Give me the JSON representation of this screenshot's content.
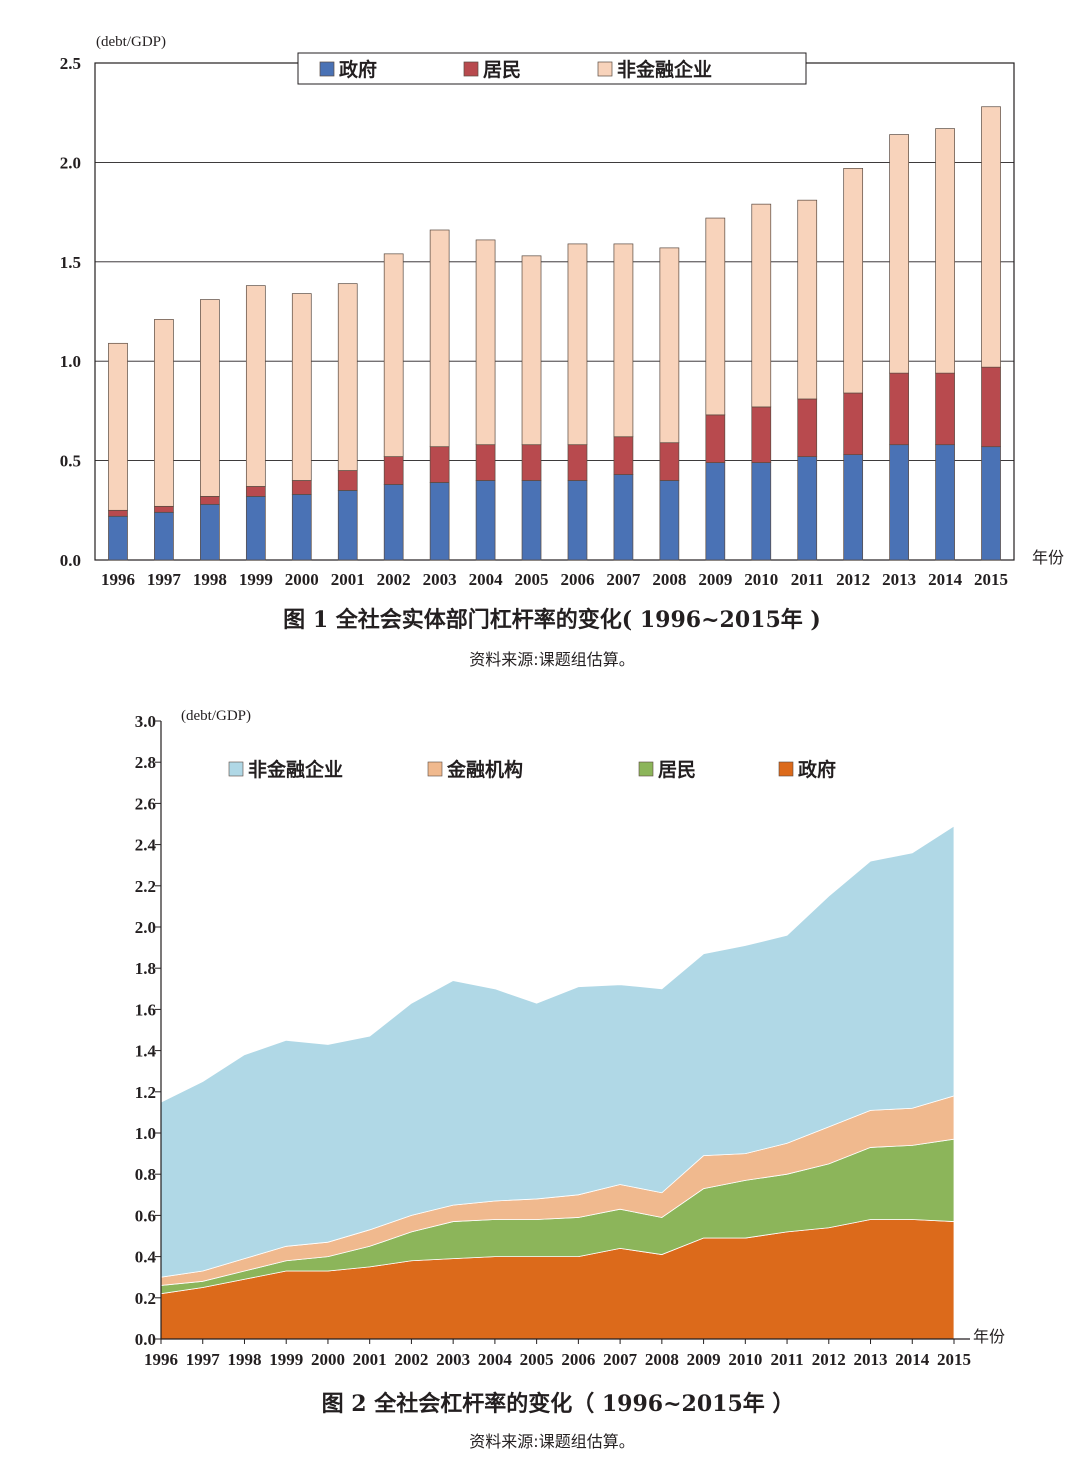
{
  "colors": {
    "fig1_gov": "#4a72b5",
    "fig1_hh": "#b84a4e",
    "fig1_corp": "#f8d3bb",
    "fig2_corp": "#b0d8e6",
    "fig2_fin": "#f0b98e",
    "fig2_hh": "#8cb55a",
    "fig2_gov": "#dc6a1b"
  },
  "chart_data": [
    {
      "type": "bar",
      "stacked": true,
      "unit_label": "(debt/GDP)",
      "x_axis_label": "年份",
      "caption": "图 1   全社会实体部门杠杆率的变化( 1996~2015年 )",
      "source": "资料来源:课题组估算。",
      "ylim": [
        0,
        2.5
      ],
      "y_ticks": [
        "0.0",
        "0.5",
        "1.0",
        "1.5",
        "2.0",
        "2.5"
      ],
      "legend_position": "top-center",
      "categories": [
        "1996",
        "1997",
        "1998",
        "1999",
        "2000",
        "2001",
        "2002",
        "2003",
        "2004",
        "2005",
        "2006",
        "2007",
        "2008",
        "2009",
        "2010",
        "2011",
        "2012",
        "2013",
        "2014",
        "2015"
      ],
      "series": [
        {
          "name": "政府",
          "color_key": "fig1_gov",
          "values": [
            0.22,
            0.24,
            0.28,
            0.32,
            0.33,
            0.35,
            0.38,
            0.39,
            0.4,
            0.4,
            0.4,
            0.43,
            0.4,
            0.49,
            0.49,
            0.52,
            0.53,
            0.58,
            0.58,
            0.57
          ]
        },
        {
          "name": "居民",
          "color_key": "fig1_hh",
          "values": [
            0.03,
            0.03,
            0.04,
            0.05,
            0.07,
            0.1,
            0.14,
            0.18,
            0.18,
            0.18,
            0.18,
            0.19,
            0.19,
            0.24,
            0.28,
            0.29,
            0.31,
            0.36,
            0.36,
            0.4
          ]
        },
        {
          "name": "非金融企业",
          "color_key": "fig1_corp",
          "values": [
            0.84,
            0.94,
            0.99,
            1.01,
            0.94,
            0.94,
            1.02,
            1.09,
            1.03,
            0.95,
            1.01,
            0.97,
            0.98,
            0.99,
            1.02,
            1.0,
            1.13,
            1.2,
            1.23,
            1.31
          ]
        }
      ]
    },
    {
      "type": "area",
      "stacked": true,
      "unit_label": "(debt/GDP)",
      "x_axis_label": "年份",
      "caption": "图 2   全社会杠杆率的变化（ 1996~2015年 ）",
      "source": "资料来源:课题组估算。",
      "ylim": [
        0,
        3.0
      ],
      "y_ticks": [
        "0.0",
        "0.2",
        "0.4",
        "0.6",
        "0.8",
        "1.0",
        "1.2",
        "1.4",
        "1.6",
        "1.8",
        "2.0",
        "2.2",
        "2.4",
        "2.6",
        "2.8",
        "3.0"
      ],
      "legend_position": "top",
      "x": [
        "1996",
        "1997",
        "1998",
        "1999",
        "2000",
        "2001",
        "2002",
        "2003",
        "2004",
        "2005",
        "2006",
        "2007",
        "2008",
        "2009",
        "2010",
        "2011",
        "2012",
        "2013",
        "2014",
        "2015"
      ],
      "series": [
        {
          "name": "政府",
          "color_key": "fig2_gov",
          "values": [
            0.22,
            0.25,
            0.29,
            0.33,
            0.33,
            0.35,
            0.38,
            0.39,
            0.4,
            0.4,
            0.4,
            0.44,
            0.41,
            0.49,
            0.49,
            0.52,
            0.54,
            0.58,
            0.58,
            0.57
          ]
        },
        {
          "name": "居民",
          "color_key": "fig2_hh",
          "values": [
            0.04,
            0.03,
            0.04,
            0.05,
            0.07,
            0.1,
            0.14,
            0.18,
            0.18,
            0.18,
            0.19,
            0.19,
            0.18,
            0.24,
            0.28,
            0.28,
            0.31,
            0.35,
            0.36,
            0.4
          ]
        },
        {
          "name": "金融机构",
          "color_key": "fig2_fin",
          "values": [
            0.04,
            0.05,
            0.06,
            0.07,
            0.07,
            0.08,
            0.08,
            0.08,
            0.09,
            0.1,
            0.11,
            0.12,
            0.12,
            0.16,
            0.13,
            0.15,
            0.18,
            0.18,
            0.18,
            0.21
          ]
        },
        {
          "name": "非金融企业",
          "color_key": "fig2_corp",
          "values": [
            0.85,
            0.92,
            0.99,
            1.0,
            0.96,
            0.94,
            1.03,
            1.09,
            1.03,
            0.95,
            1.01,
            0.97,
            0.99,
            0.98,
            1.01,
            1.01,
            1.12,
            1.21,
            1.24,
            1.31
          ]
        }
      ],
      "legend_order": [
        "非金融企业",
        "金融机构",
        "居民",
        "政府"
      ]
    }
  ]
}
